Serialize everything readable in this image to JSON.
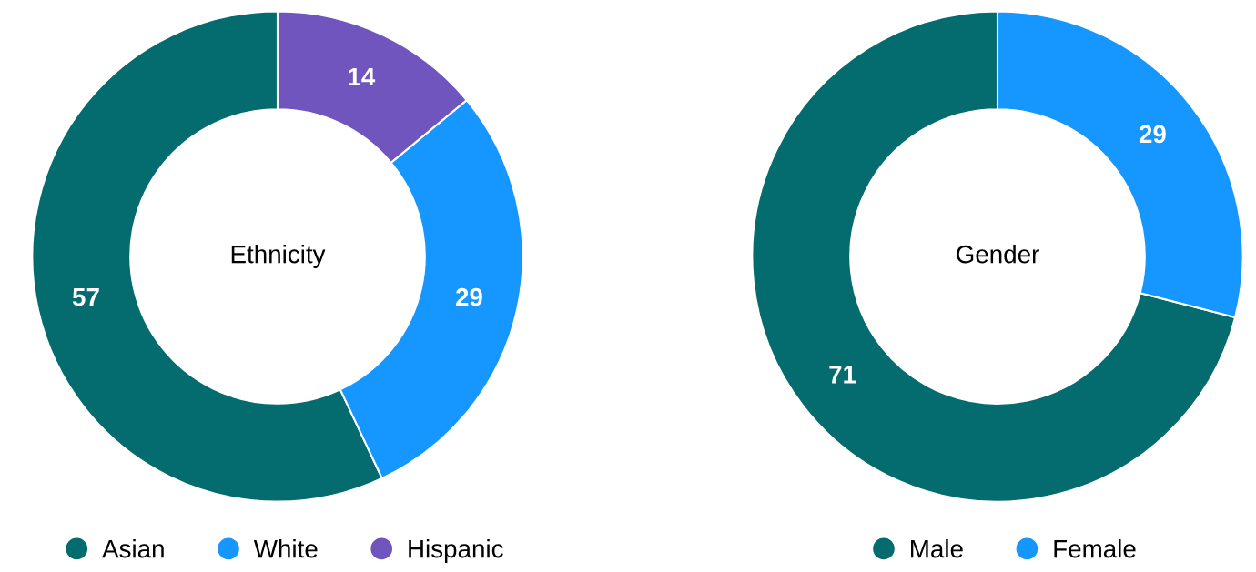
{
  "chart_data": [
    {
      "type": "donut",
      "title": "Ethnicity",
      "categories": [
        "Asian",
        "White",
        "Hispanic"
      ],
      "values": [
        57,
        29,
        14
      ],
      "colors": [
        "#046b6e",
        "#1597ff",
        "#6f55bd"
      ],
      "data_labels": true,
      "legend": "bottom"
    },
    {
      "type": "donut",
      "title": "Gender",
      "categories": [
        "Male",
        "Female"
      ],
      "values": [
        71,
        29
      ],
      "colors": [
        "#046b6e",
        "#1597ff"
      ],
      "data_labels": true,
      "legend": "bottom"
    }
  ]
}
